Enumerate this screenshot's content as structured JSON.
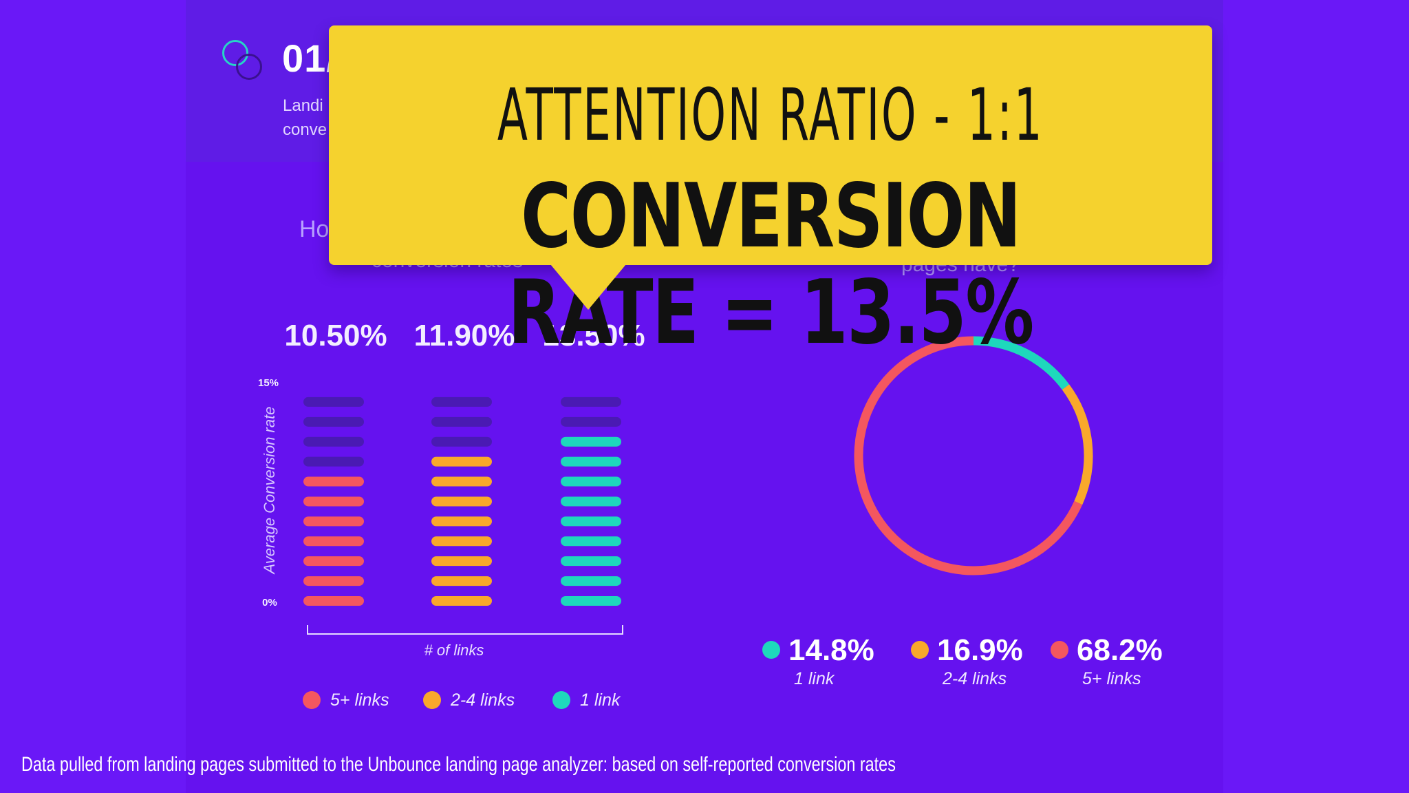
{
  "header": {
    "section_number": "01/",
    "subtitle_line1": "Landi",
    "subtitle_line2": "conve"
  },
  "callout": {
    "title": "ATTENTION RATIO - 1:1",
    "rate": "CONVERSION RATE = 13.5%"
  },
  "fragments": {
    "left_question": "Ho",
    "left_question_tail": "conversion rates",
    "right_question_tail": "pages have?"
  },
  "footnote": "Data pulled from landing pages submitted to the Unbounce landing page analyzer: based on self-reported conversion rates",
  "colors": {
    "five_plus": "#f4575f",
    "two_four": "#f9a82b",
    "one": "#1ed8bc",
    "empty": "#4a1ab3"
  },
  "chart_data": [
    {
      "type": "bar",
      "categories": [
        "5+ links",
        "2-4 links",
        "1 link"
      ],
      "values": [
        10.5,
        11.9,
        13.5
      ],
      "value_labels": [
        "10.50%",
        "11.90%",
        "13.50%"
      ],
      "ylabel": "Average Conversion rate",
      "xlabel": "# of links",
      "ylim": [
        0,
        15
      ],
      "y_ticks": [
        "0%",
        "15%"
      ],
      "legend": [
        "5+ links",
        "2-4 links",
        "1 link"
      ],
      "legend_placement": "bottom",
      "grid": false
    },
    {
      "type": "pie",
      "labels": [
        "1 link",
        "2-4 links",
        "5+ links"
      ],
      "values": [
        14.8,
        16.9,
        68.2
      ],
      "value_labels": [
        "14.8%",
        "16.9%",
        "68.2%"
      ],
      "style": "donut",
      "legend_placement": "bottom"
    }
  ]
}
